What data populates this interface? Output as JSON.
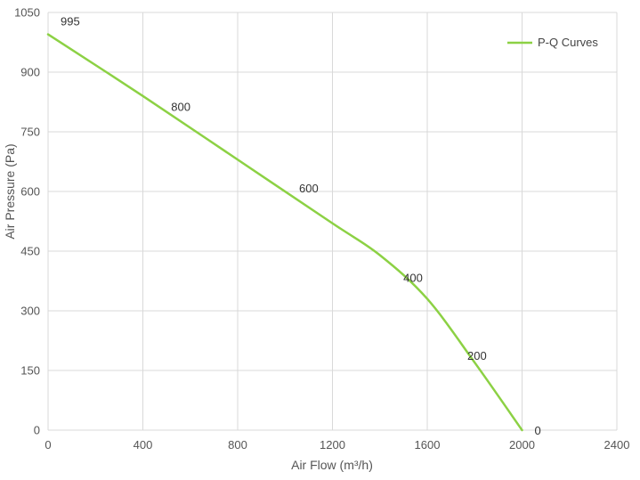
{
  "chart_data": {
    "type": "line",
    "title": "",
    "xlabel": "Air Flow  (m³/h)",
    "ylabel": "Air Pressure  (Pa)",
    "xlim": [
      0,
      2400
    ],
    "ylim": [
      0,
      1050
    ],
    "x_ticks": [
      0,
      400,
      800,
      1200,
      1600,
      2000,
      2400
    ],
    "y_ticks": [
      0,
      150,
      300,
      450,
      600,
      750,
      900,
      1050
    ],
    "grid": true,
    "legend_position": "top-right",
    "series": [
      {
        "name": "P-Q Curves",
        "color": "#8cd144",
        "x": [
          0,
          400,
          800,
          1200,
          1400,
          1600,
          1800,
          2000
        ],
        "y": [
          995,
          840,
          680,
          520,
          440,
          330,
          170,
          0
        ]
      }
    ],
    "annotations": [
      {
        "x": 0,
        "y": 995,
        "text": "995"
      },
      {
        "x": 560,
        "y": 780,
        "text": "800"
      },
      {
        "x": 1100,
        "y": 575,
        "text": "600"
      },
      {
        "x": 1570,
        "y": 350,
        "text": "400"
      },
      {
        "x": 1840,
        "y": 155,
        "text": "200"
      },
      {
        "x": 2000,
        "y": 0,
        "text": "0"
      }
    ]
  }
}
